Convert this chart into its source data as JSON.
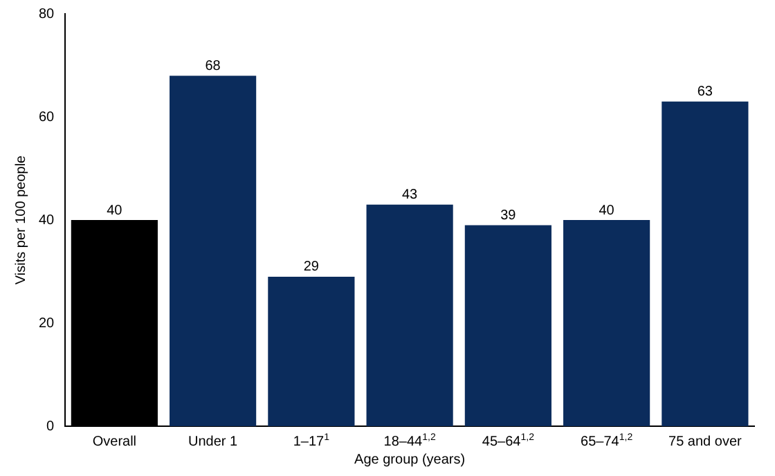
{
  "chart_data": {
    "type": "bar",
    "xlabel": "Age group (years)",
    "ylabel": "Visits per 100 people",
    "categories": [
      "Overall",
      "Under 1",
      "1–17$^{1}$",
      "18–44$^{1,2}$",
      "45–64$^{1,2}$",
      "65–74$^{1,2}$",
      "75 and over"
    ],
    "values": [
      40,
      68,
      29,
      43,
      39,
      40,
      63
    ],
    "colors": [
      "#000000",
      "#0b2c5c",
      "#0b2c5c",
      "#0b2c5c",
      "#0b2c5c",
      "#0b2c5c",
      "#0b2c5c"
    ],
    "ylim": [
      0,
      80
    ],
    "yticks": [
      0,
      20,
      40,
      60,
      80
    ],
    "grid": false,
    "legend": false,
    "data_labels": true
  }
}
